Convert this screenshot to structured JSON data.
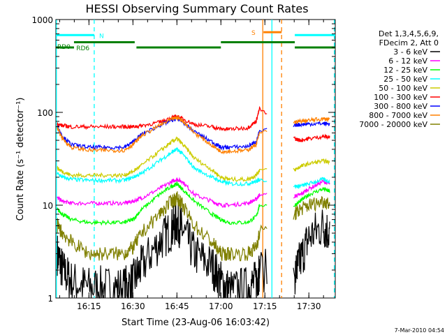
{
  "chart_data": {
    "type": "line",
    "title": "HESSI Observing Summary Count Rates",
    "xlabel": "Start Time (23-Aug-06 16:03:42)",
    "ylabel": "Count Rate (s⁻¹ detector⁻¹)",
    "y_scale": "log",
    "ylim": [
      1,
      1000
    ],
    "xlim": [
      16.062,
      17.65
    ],
    "grid": false,
    "legend_placement": "right",
    "x_ticks": [
      {
        "value": 16.25,
        "label": "16:15"
      },
      {
        "value": 16.5,
        "label": "16:30"
      },
      {
        "value": 16.75,
        "label": "16:45"
      },
      {
        "value": 17.0,
        "label": "17:00"
      },
      {
        "value": 17.25,
        "label": "17:15"
      },
      {
        "value": 17.5,
        "label": "17:30"
      }
    ],
    "y_ticks": [
      {
        "value": 1,
        "label": "1"
      },
      {
        "value": 10,
        "label": "10"
      },
      {
        "value": 100,
        "label": "100"
      },
      {
        "value": 1000,
        "label": "1000"
      }
    ],
    "legend_header": [
      "Det 1,3,4,5,6,9,",
      "FDecim 2, Att 0"
    ],
    "series": [
      {
        "name": "3 - 6 keV",
        "color": "#000000",
        "x": [
          16.07,
          16.1,
          16.15,
          16.25,
          16.35,
          16.45,
          16.5,
          16.55,
          16.65,
          16.72,
          16.75,
          16.78,
          16.85,
          16.95,
          17.0,
          17.05,
          17.15,
          17.2,
          17.22,
          17.42,
          17.45,
          17.5,
          17.58,
          17.62
        ],
        "y": [
          3,
          2,
          1.5,
          1.3,
          1.3,
          1.3,
          1.5,
          2.2,
          4,
          5.5,
          6.5,
          5.5,
          3,
          2.2,
          1.5,
          1.2,
          1.3,
          1.5,
          2,
          1.8,
          2.5,
          4.5,
          6,
          5
        ]
      },
      {
        "name": "6 - 12 keV",
        "color": "#ff00ff",
        "x": [
          16.07,
          16.1,
          16.15,
          16.25,
          16.35,
          16.45,
          16.5,
          16.55,
          16.65,
          16.72,
          16.75,
          16.78,
          16.85,
          16.95,
          17.0,
          17.05,
          17.15,
          17.2,
          17.22,
          17.42,
          17.45,
          17.5,
          17.58,
          17.62
        ],
        "y": [
          12,
          11,
          10.5,
          10.5,
          10.5,
          10.5,
          11,
          12,
          15,
          18,
          19,
          18,
          13,
          11,
          10,
          10,
          10.5,
          11.5,
          13,
          12.5,
          13,
          15,
          18,
          17
        ]
      },
      {
        "name": "12 - 25 keV",
        "color": "#00ff00",
        "x": [
          16.07,
          16.1,
          16.15,
          16.25,
          16.35,
          16.45,
          16.5,
          16.55,
          16.65,
          16.72,
          16.75,
          16.78,
          16.85,
          16.95,
          17.0,
          17.05,
          17.15,
          17.2,
          17.22,
          17.42,
          17.45,
          17.5,
          17.58,
          17.62
        ],
        "y": [
          9,
          8,
          7,
          6.5,
          6.5,
          6.5,
          7,
          9,
          13,
          16,
          17,
          15,
          11,
          8,
          7,
          6.5,
          6.5,
          7.5,
          10,
          10,
          11,
          13,
          15,
          14
        ]
      },
      {
        "name": "25 - 50 keV",
        "color": "#00ffff",
        "x": [
          16.07,
          16.1,
          16.15,
          16.25,
          16.35,
          16.45,
          16.5,
          16.55,
          16.65,
          16.72,
          16.75,
          16.78,
          16.85,
          16.95,
          17.0,
          17.05,
          17.15,
          17.2,
          17.22,
          17.42,
          17.45,
          17.5,
          17.58,
          17.62
        ],
        "y": [
          22,
          20,
          19,
          18.5,
          18.5,
          18.5,
          20,
          22,
          30,
          37,
          40,
          36,
          25,
          20,
          18,
          17,
          17,
          18,
          19,
          16,
          16,
          17,
          19,
          18
        ]
      },
      {
        "name": "50 - 100 keV",
        "color": "#cccc00",
        "x": [
          16.07,
          16.1,
          16.15,
          16.25,
          16.35,
          16.45,
          16.5,
          16.55,
          16.65,
          16.72,
          16.75,
          16.78,
          16.85,
          16.95,
          17.0,
          17.05,
          17.15,
          17.2,
          17.22,
          17.42,
          17.45,
          17.5,
          17.58,
          17.62
        ],
        "y": [
          25,
          23,
          21,
          21,
          21,
          21,
          23,
          27,
          38,
          48,
          52,
          46,
          32,
          24,
          20,
          19,
          19,
          21,
          24,
          24,
          26,
          28,
          30,
          29
        ]
      },
      {
        "name": "100 - 300 keV",
        "color": "#ff0000",
        "x": [
          16.07,
          16.1,
          16.15,
          16.25,
          16.35,
          16.45,
          16.5,
          16.55,
          16.65,
          16.72,
          16.75,
          16.78,
          16.85,
          16.95,
          17.0,
          17.05,
          17.15,
          17.2,
          17.22,
          17.42,
          17.45,
          17.5,
          17.58,
          17.62
        ],
        "y": [
          75,
          72,
          70,
          70,
          70,
          70,
          70,
          72,
          78,
          88,
          90,
          86,
          74,
          70,
          66,
          66,
          68,
          80,
          110,
          52,
          50,
          52,
          55,
          54
        ]
      },
      {
        "name": "300 - 800 keV",
        "color": "#0000ff",
        "x": [
          16.07,
          16.1,
          16.15,
          16.25,
          16.35,
          16.45,
          16.5,
          16.55,
          16.65,
          16.72,
          16.75,
          16.78,
          16.85,
          16.95,
          17.0,
          17.05,
          17.15,
          17.2,
          17.22,
          17.42,
          17.45,
          17.5,
          17.58,
          17.62
        ],
        "y": [
          70,
          55,
          45,
          42,
          42,
          42,
          48,
          58,
          72,
          82,
          86,
          80,
          62,
          48,
          42,
          42,
          43,
          48,
          62,
          73,
          74,
          75,
          76,
          75
        ]
      },
      {
        "name": "800 - 7000 keV",
        "color": "#ff8000",
        "x": [
          16.07,
          16.1,
          16.15,
          16.25,
          16.35,
          16.45,
          16.5,
          16.55,
          16.65,
          16.72,
          16.75,
          16.78,
          16.85,
          16.95,
          17.0,
          17.05,
          17.15,
          17.2,
          17.22,
          17.42,
          17.45,
          17.5,
          17.58,
          17.62
        ],
        "y": [
          68,
          52,
          42,
          39,
          39,
          39,
          45,
          56,
          72,
          84,
          88,
          82,
          60,
          44,
          38,
          38,
          39,
          45,
          60,
          78,
          80,
          82,
          85,
          84
        ]
      },
      {
        "name": "7000 - 20000 keV",
        "color": "#808000",
        "x": [
          16.07,
          16.1,
          16.15,
          16.25,
          16.35,
          16.45,
          16.5,
          16.55,
          16.65,
          16.72,
          16.75,
          16.78,
          16.85,
          16.95,
          17.0,
          17.05,
          17.15,
          17.2,
          17.22,
          17.42,
          17.45,
          17.5,
          17.58,
          17.62
        ],
        "y": [
          6,
          5,
          4,
          3,
          3,
          3,
          3.5,
          5,
          8,
          11,
          12,
          10,
          6,
          4,
          3,
          3,
          3,
          3.5,
          5,
          8,
          9,
          10,
          11,
          10.5
        ]
      }
    ],
    "flags": [
      {
        "label": "N",
        "color": "#00ffff",
        "y": 680,
        "segments": [
          [
            16.062,
            16.28
          ],
          [
            17.42,
            17.65
          ]
        ]
      },
      {
        "label": "S",
        "color": "#ff8000",
        "y": 730,
        "segments": [
          [
            17.242,
            17.345
          ]
        ]
      },
      {
        "label": "RD0",
        "color": "#008000",
        "y": 500,
        "segments": [
          [
            16.062,
            16.165
          ]
        ]
      },
      {
        "label": "RD6",
        "color": "#008000",
        "y": 570,
        "segments": [
          [
            16.165,
            16.51
          ],
          [
            17.0,
            17.42
          ]
        ]
      },
      {
        "label": "",
        "color": "#008000",
        "y": 500,
        "segments": [
          [
            16.52,
            17.0
          ],
          [
            17.42,
            17.65
          ]
        ]
      }
    ],
    "vertical_lines": [
      {
        "x": 16.065,
        "color": "#00ffff",
        "style": "solid"
      },
      {
        "x": 16.28,
        "color": "#00ffff",
        "style": "dashed"
      },
      {
        "x": 17.238,
        "color": "#ff8000",
        "style": "solid"
      },
      {
        "x": 17.29,
        "color": "#00ffff",
        "style": "solid"
      },
      {
        "x": 17.345,
        "color": "#ff8000",
        "style": "dashed"
      },
      {
        "x": 17.645,
        "color": "#00ffff",
        "style": "dashed"
      }
    ]
  },
  "footer": {
    "timestamp": "7-Mar-2010 04:54"
  }
}
